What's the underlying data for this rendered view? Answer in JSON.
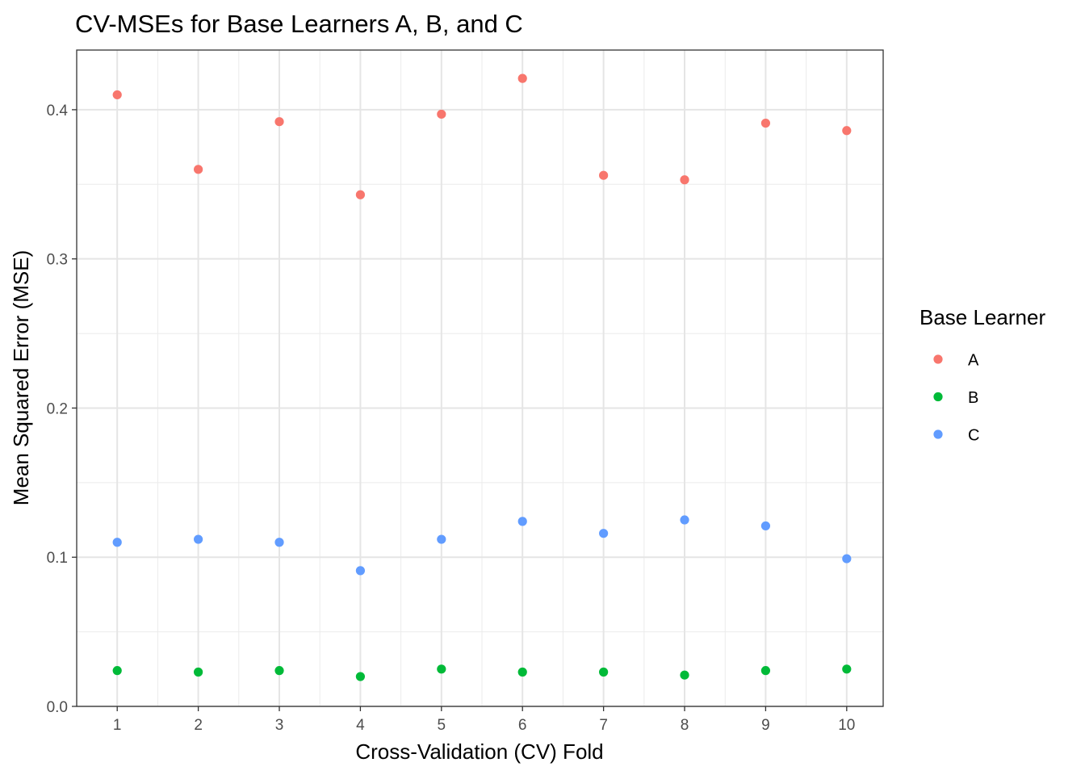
{
  "chart_data": {
    "type": "scatter",
    "title": "CV-MSEs for Base Learners A, B, and C",
    "xlabel": "Cross-Validation (CV) Fold",
    "ylabel": "Mean Squared Error (MSE)",
    "x": [
      1,
      2,
      3,
      4,
      5,
      6,
      7,
      8,
      9,
      10
    ],
    "x_tick_labels": [
      "1",
      "2",
      "3",
      "4",
      "5",
      "6",
      "7",
      "8",
      "9",
      "10"
    ],
    "y_ticks": [
      0.0,
      0.1,
      0.2,
      0.3,
      0.4
    ],
    "y_tick_labels": [
      "0.0",
      "0.1",
      "0.2",
      "0.3",
      "0.4"
    ],
    "xlim": [
      0.5,
      10.45
    ],
    "ylim": [
      0,
      0.44
    ],
    "grid": true,
    "legend_title": "Base Learner",
    "legend_position": "right",
    "series": [
      {
        "name": "A",
        "color": "#F8766D",
        "values": [
          0.41,
          0.36,
          0.392,
          0.343,
          0.397,
          0.421,
          0.356,
          0.353,
          0.391,
          0.386
        ]
      },
      {
        "name": "B",
        "color": "#00BA38",
        "values": [
          0.024,
          0.023,
          0.024,
          0.02,
          0.025,
          0.023,
          0.023,
          0.021,
          0.024,
          0.025
        ]
      },
      {
        "name": "C",
        "color": "#619CFF",
        "values": [
          0.11,
          0.112,
          0.11,
          0.091,
          0.112,
          0.124,
          0.116,
          0.125,
          0.121,
          0.099
        ]
      }
    ]
  }
}
